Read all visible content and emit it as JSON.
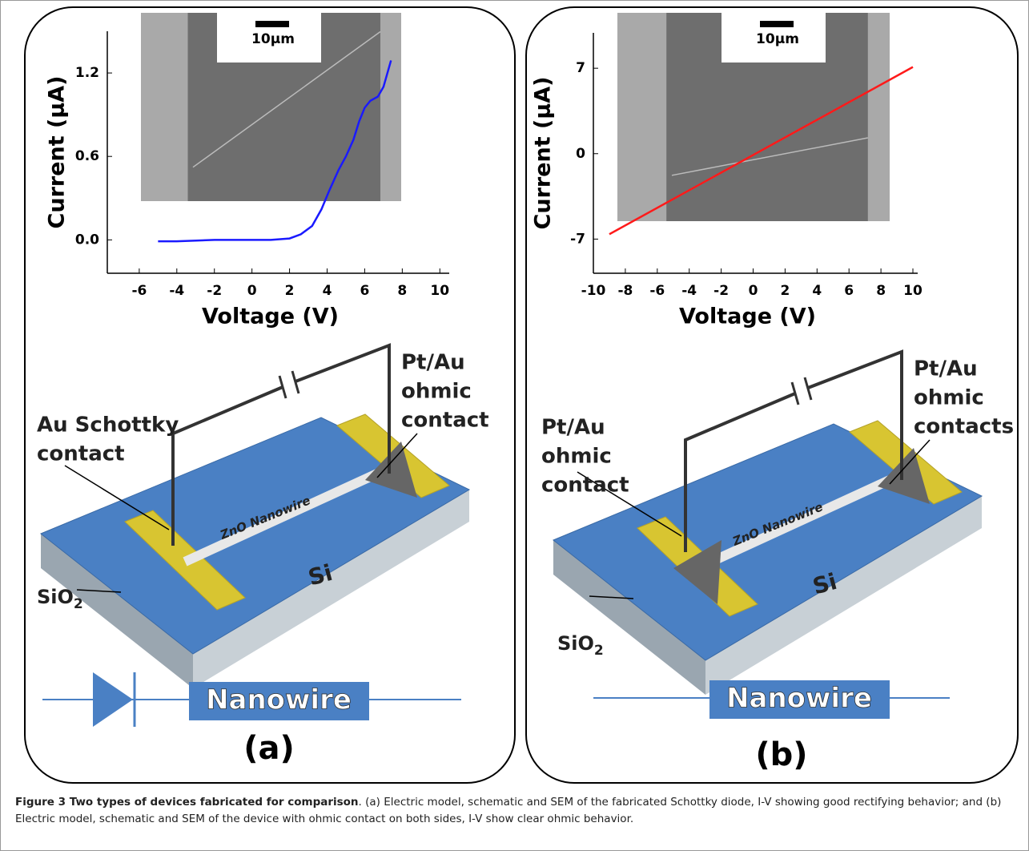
{
  "chart_data": [
    {
      "type": "line",
      "x_label": "Voltage (V)",
      "y_label": "Current (μA)",
      "color": "#1a1aff",
      "x": [
        -5,
        -4,
        -2,
        0,
        1,
        2,
        2.6,
        3.2,
        3.7,
        4.1,
        4.6,
        5.0,
        5.4,
        5.7,
        6.0,
        6.3,
        6.7,
        7.0,
        7.4
      ],
      "values": [
        -0.01,
        -0.01,
        0,
        0,
        0,
        0.01,
        0.04,
        0.1,
        0.22,
        0.35,
        0.5,
        0.6,
        0.72,
        0.85,
        0.95,
        1.0,
        1.03,
        1.1,
        1.29
      ],
      "xlim": [
        -7.7,
        10.5
      ],
      "ylim": [
        -0.24,
        1.5
      ],
      "xticks": [
        -6,
        -4,
        -2,
        0,
        2,
        4,
        6,
        8,
        10
      ],
      "yticks": [
        {
          "value": 0,
          "label": "0.0"
        },
        0.6,
        1.2
      ],
      "scale_bar": "10μm"
    },
    {
      "type": "line",
      "x_label": "Voltage (V)",
      "y_label": "Current (μA)",
      "color": "#ff1a1a",
      "x": [
        -9,
        10
      ],
      "values": [
        -6.6,
        7.1
      ],
      "xlim": [
        -10,
        10.3
      ],
      "ylim": [
        -9.8,
        9.9
      ],
      "xticks": [
        -10,
        -8,
        -6,
        -4,
        -2,
        0,
        2,
        4,
        6,
        8,
        10
      ],
      "yticks": [
        -7,
        0,
        7
      ],
      "scale_bar": "10μm"
    }
  ],
  "panels": [
    {
      "right_label": [
        "Pt/Au",
        "ohmic",
        "contact"
      ],
      "left_label": [
        "Au Schottky",
        "contact"
      ],
      "wire": "ZnO Nanowire",
      "oxide": {
        "base": "SiO",
        "sub": "2"
      },
      "substrate": "Si",
      "model": "Nanowire",
      "tag": "(a)"
    },
    {
      "right_label": [
        "Pt/Au",
        "ohmic",
        "contacts"
      ],
      "left_label": [
        "Pt/Au",
        "ohmic",
        "contact"
      ],
      "wire": "ZnO Nanowire",
      "oxide": {
        "base": "SiO",
        "sub": "2"
      },
      "substrate": "Si",
      "model": "Nanowire",
      "tag": "(b)"
    }
  ],
  "caption": {
    "label": "Figure 3 Two types of devices fabricated for comparison",
    "text": ". (a) Electric model, schematic and SEM of the fabricated Schottky diode, I-V showing good rectifying behavior; and (b) Electric model, schematic and SEM of the device with ohmic contact on both sides, I-V show clear ohmic behavior."
  }
}
